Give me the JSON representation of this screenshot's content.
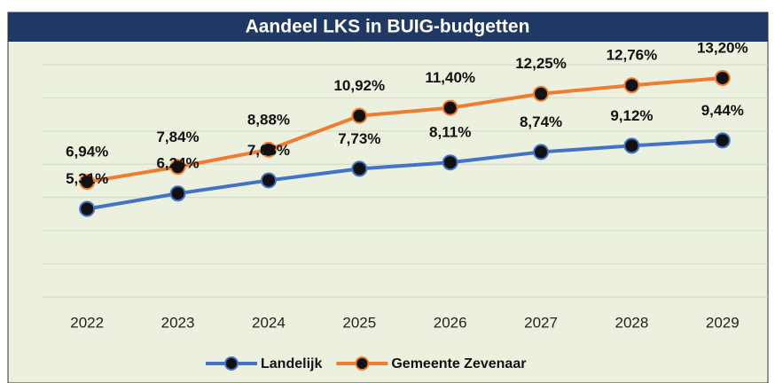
{
  "chart_data": {
    "type": "line",
    "title": "Aandeel LKS in BUIG-budgetten",
    "categories": [
      "2022",
      "2023",
      "2024",
      "2025",
      "2026",
      "2027",
      "2028",
      "2029"
    ],
    "series": [
      {
        "name": "Landelijk",
        "color": "#4472c4",
        "values": [
          5.31,
          6.24,
          7.03,
          7.73,
          8.11,
          8.74,
          9.12,
          9.44
        ],
        "value_labels": [
          "5,31%",
          "6,24%",
          "7,03%",
          "7,73%",
          "8,11%",
          "8,74%",
          "9,12%",
          "9,44%"
        ]
      },
      {
        "name": "Gemeente Zevenaar",
        "color": "#ed7d31",
        "values": [
          6.94,
          7.84,
          8.88,
          10.92,
          11.4,
          12.25,
          12.76,
          13.2
        ],
        "value_labels": [
          "6,94%",
          "7,84%",
          "8,88%",
          "10,92%",
          "11,40%",
          "12,25%",
          "12,76%",
          "13,20%"
        ]
      }
    ],
    "ylim": [
      0,
      14
    ],
    "yticks": [
      0,
      2,
      4,
      6,
      8,
      10,
      12,
      14
    ],
    "grid": true,
    "legend": "bottom"
  }
}
